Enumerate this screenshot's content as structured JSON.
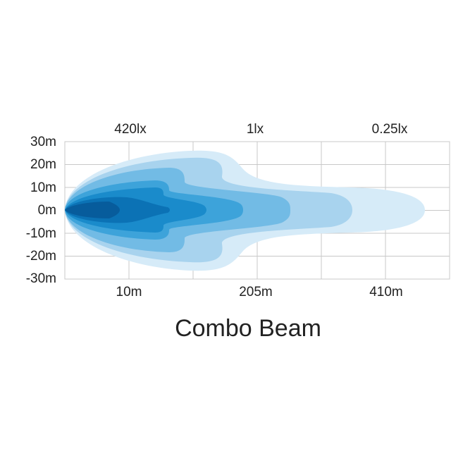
{
  "title": "Combo Beam",
  "top_labels": [
    "420lx",
    "1lx",
    "0.25lx"
  ],
  "y_labels": [
    "30m",
    "20m",
    "10m",
    "0m",
    "-10m",
    "-20m",
    "-30m"
  ],
  "x_labels": [
    "10m",
    "205m",
    "410m"
  ]
}
